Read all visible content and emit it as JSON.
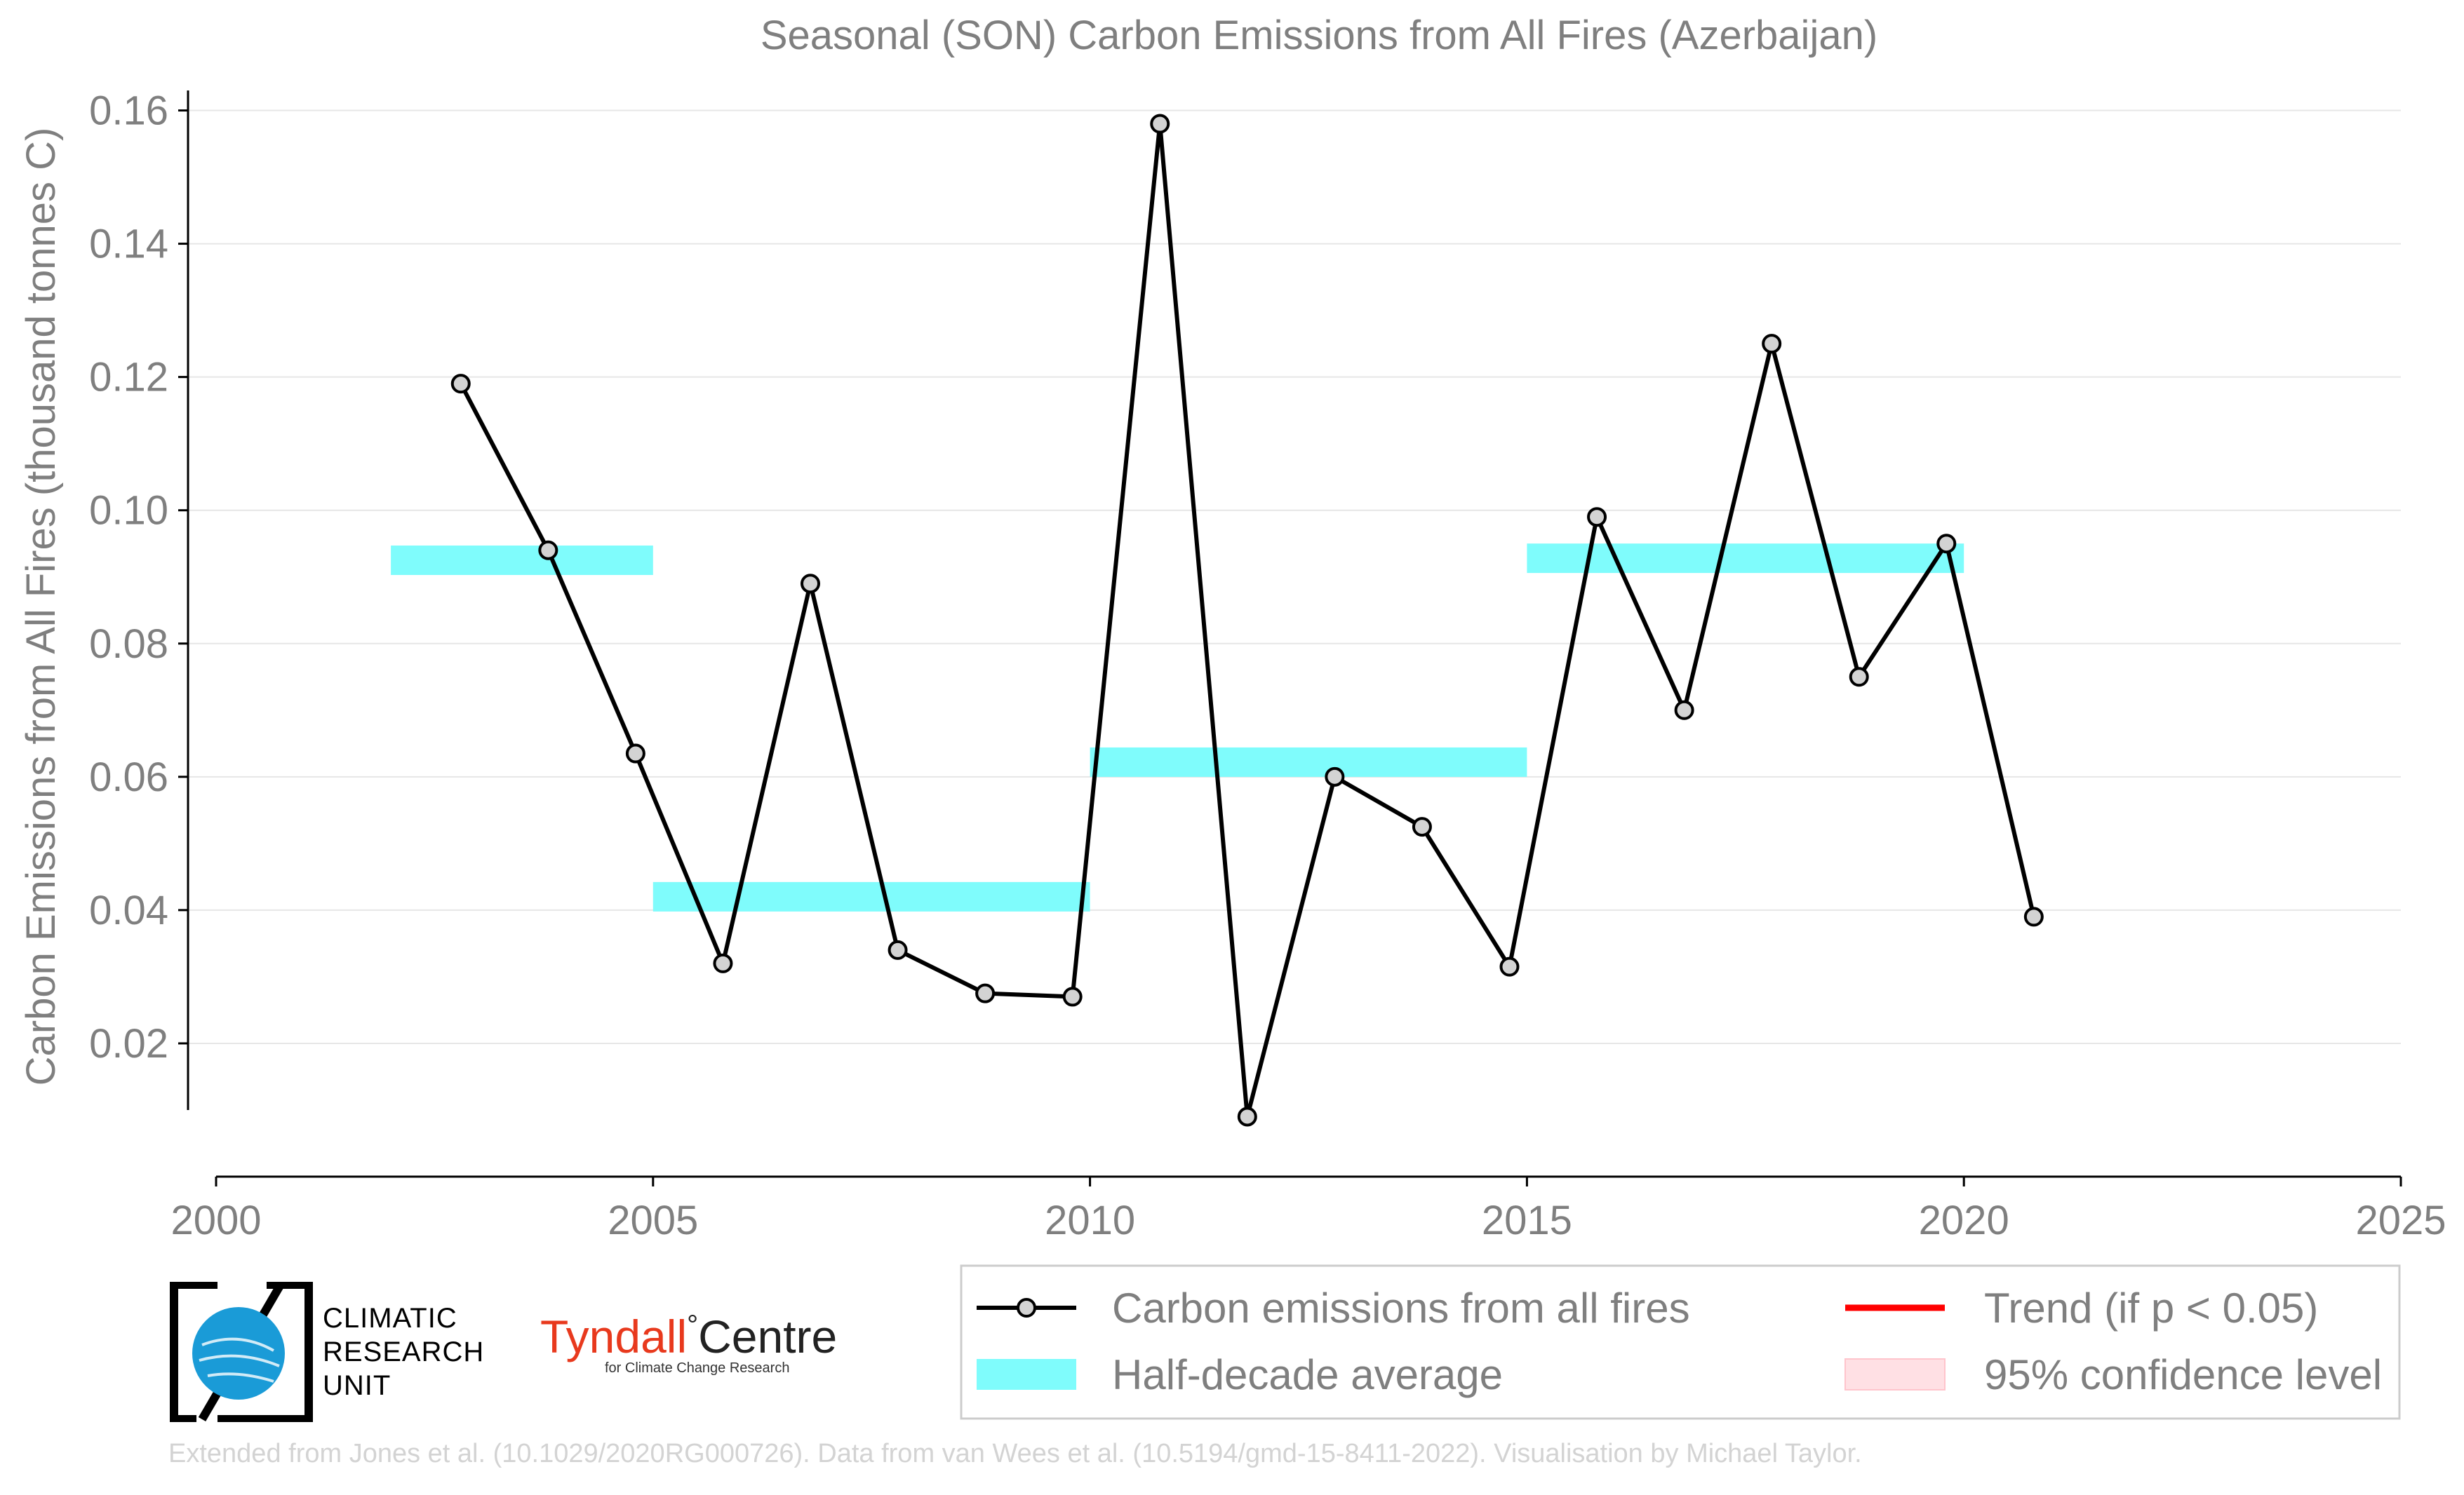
{
  "chart_data": {
    "type": "line",
    "title": "Seasonal (SON) Carbon Emissions from All Fires (Azerbaijan)",
    "xlabel": "",
    "ylabel": "Carbon Emissions from All Fires (thousand tonnes C)",
    "xlim": [
      2000,
      2025
    ],
    "ylim": [
      0,
      0.165
    ],
    "x_ticks": [
      "2000",
      "2005",
      "2010",
      "2015",
      "2020",
      "2025"
    ],
    "y_ticks": [
      "0.02",
      "0.04",
      "0.06",
      "0.08",
      "0.10",
      "0.12",
      "0.14",
      "0.16"
    ],
    "grid": "horizontal",
    "series": [
      {
        "name": "Carbon emissions from all fires",
        "color": "#000000",
        "marker_fill": "#d3d3d3",
        "x": [
          2003,
          2004,
          2005,
          2006,
          2007,
          2008,
          2009,
          2010,
          2011,
          2012,
          2013,
          2014,
          2015,
          2016,
          2017,
          2018,
          2019,
          2020,
          2021
        ],
        "values": [
          0.119,
          0.094,
          0.0635,
          0.032,
          0.089,
          0.034,
          0.0275,
          0.027,
          0.158,
          0.009,
          0.06,
          0.0525,
          0.0315,
          0.099,
          0.07,
          0.125,
          0.075,
          0.095,
          0.039
        ]
      }
    ],
    "half_decade_average": {
      "name": "Half-decade average",
      "color": "#7ffcfc",
      "segments": [
        {
          "x0": 2002,
          "x1": 2005,
          "value": 0.0925
        },
        {
          "x0": 2005,
          "x1": 2010,
          "value": 0.042
        },
        {
          "x0": 2010,
          "x1": 2015,
          "value": 0.0622
        },
        {
          "x0": 2015,
          "x1": 2020,
          "value": 0.0928
        }
      ]
    },
    "legend": {
      "placement": "bottom-right",
      "items": [
        {
          "label": "Carbon emissions from all fires",
          "kind": "line-marker",
          "color": "#000000"
        },
        {
          "label": "Trend (if p < 0.05)",
          "kind": "line",
          "color": "#ff0000"
        },
        {
          "label": "Half-decade average",
          "kind": "patch",
          "color": "#7ffcfc"
        },
        {
          "label": "95% confidence level",
          "kind": "patch",
          "color": "#ffe0e4"
        }
      ]
    }
  },
  "logos": {
    "cru": {
      "line1": "CLIMATIC",
      "line2": "RESEARCH",
      "line3": "UNIT"
    },
    "tyndall": {
      "name_part1": "Tyndall",
      "degree": "°",
      "name_part2": "Centre",
      "subtitle": "for Climate Change Research"
    }
  },
  "footer": {
    "credit": "Extended from Jones et al. (10.1029/2020RG000726). Data from van Wees et al. (10.5194/gmd-15-8411-2022). Visualisation by Michael Taylor."
  }
}
